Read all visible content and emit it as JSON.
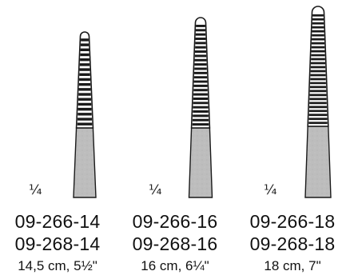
{
  "instruments": [
    {
      "scale_label": "¼",
      "code_1": "09-266-14",
      "code_2": "09-268-14",
      "size": "14,5 cm, 5½\"",
      "serrations": 18
    },
    {
      "scale_label": "¼",
      "code_1": "09-266-16",
      "code_2": "09-268-16",
      "size": "16 cm, 6¼\"",
      "serrations": 24
    },
    {
      "scale_label": "¼",
      "code_1": "09-266-18",
      "code_2": "09-268-18",
      "size": "18 cm, 7\"",
      "serrations": 28
    }
  ],
  "colors": {
    "outline": "#1a1a1a",
    "jaw_fill": "#ffffff",
    "shaft_fill": "#bdbdbd"
  }
}
